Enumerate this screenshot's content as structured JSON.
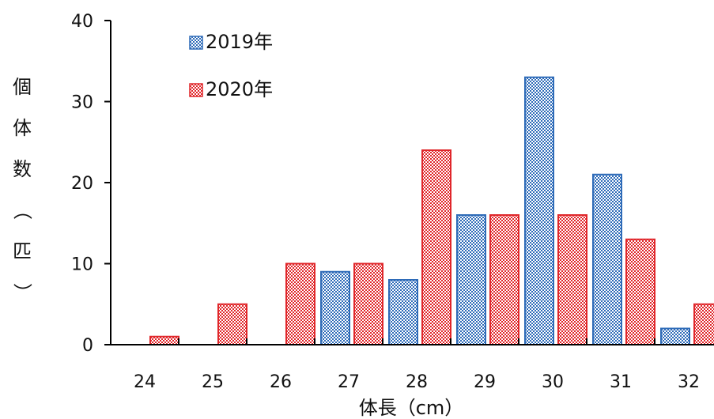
{
  "chart_data": {
    "type": "bar",
    "categories": [
      "24",
      "25",
      "26",
      "27",
      "28",
      "29",
      "30",
      "31",
      "32"
    ],
    "series": [
      {
        "name": "2019年",
        "values": [
          0,
          0,
          0,
          9,
          8,
          16,
          33,
          21,
          2
        ],
        "color": "#2e6bb8"
      },
      {
        "name": "2020年",
        "values": [
          1,
          5,
          10,
          10,
          24,
          16,
          16,
          13,
          5
        ],
        "color": "#e0262a"
      }
    ],
    "xlabel": "体長（cm）",
    "ylabel": "個体数（匹）",
    "ylim": [
      0,
      40
    ],
    "yticks": [
      0,
      10,
      20,
      30,
      40
    ],
    "grid": false,
    "legend": "top-left"
  }
}
